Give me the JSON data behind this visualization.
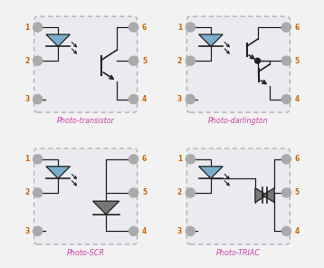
{
  "bg_color": "#f2f2f2",
  "box_color": "#eaeaf0",
  "box_edge": "#aaaaaa",
  "led_fill": "#7aadcc",
  "scr_diode_fill": "#777777",
  "triac_fill": "#777777",
  "line_color": "#222222",
  "label_color_pin": "#cc6600",
  "label_color_title": "#cc44aa",
  "pin_color": "#aaaaaa",
  "titles": [
    "Photo-transistor",
    "Photo-darlington",
    "Photo-SCR",
    "Photo-TRIAC"
  ],
  "types": [
    "transistor",
    "darlington",
    "scr",
    "triac"
  ]
}
